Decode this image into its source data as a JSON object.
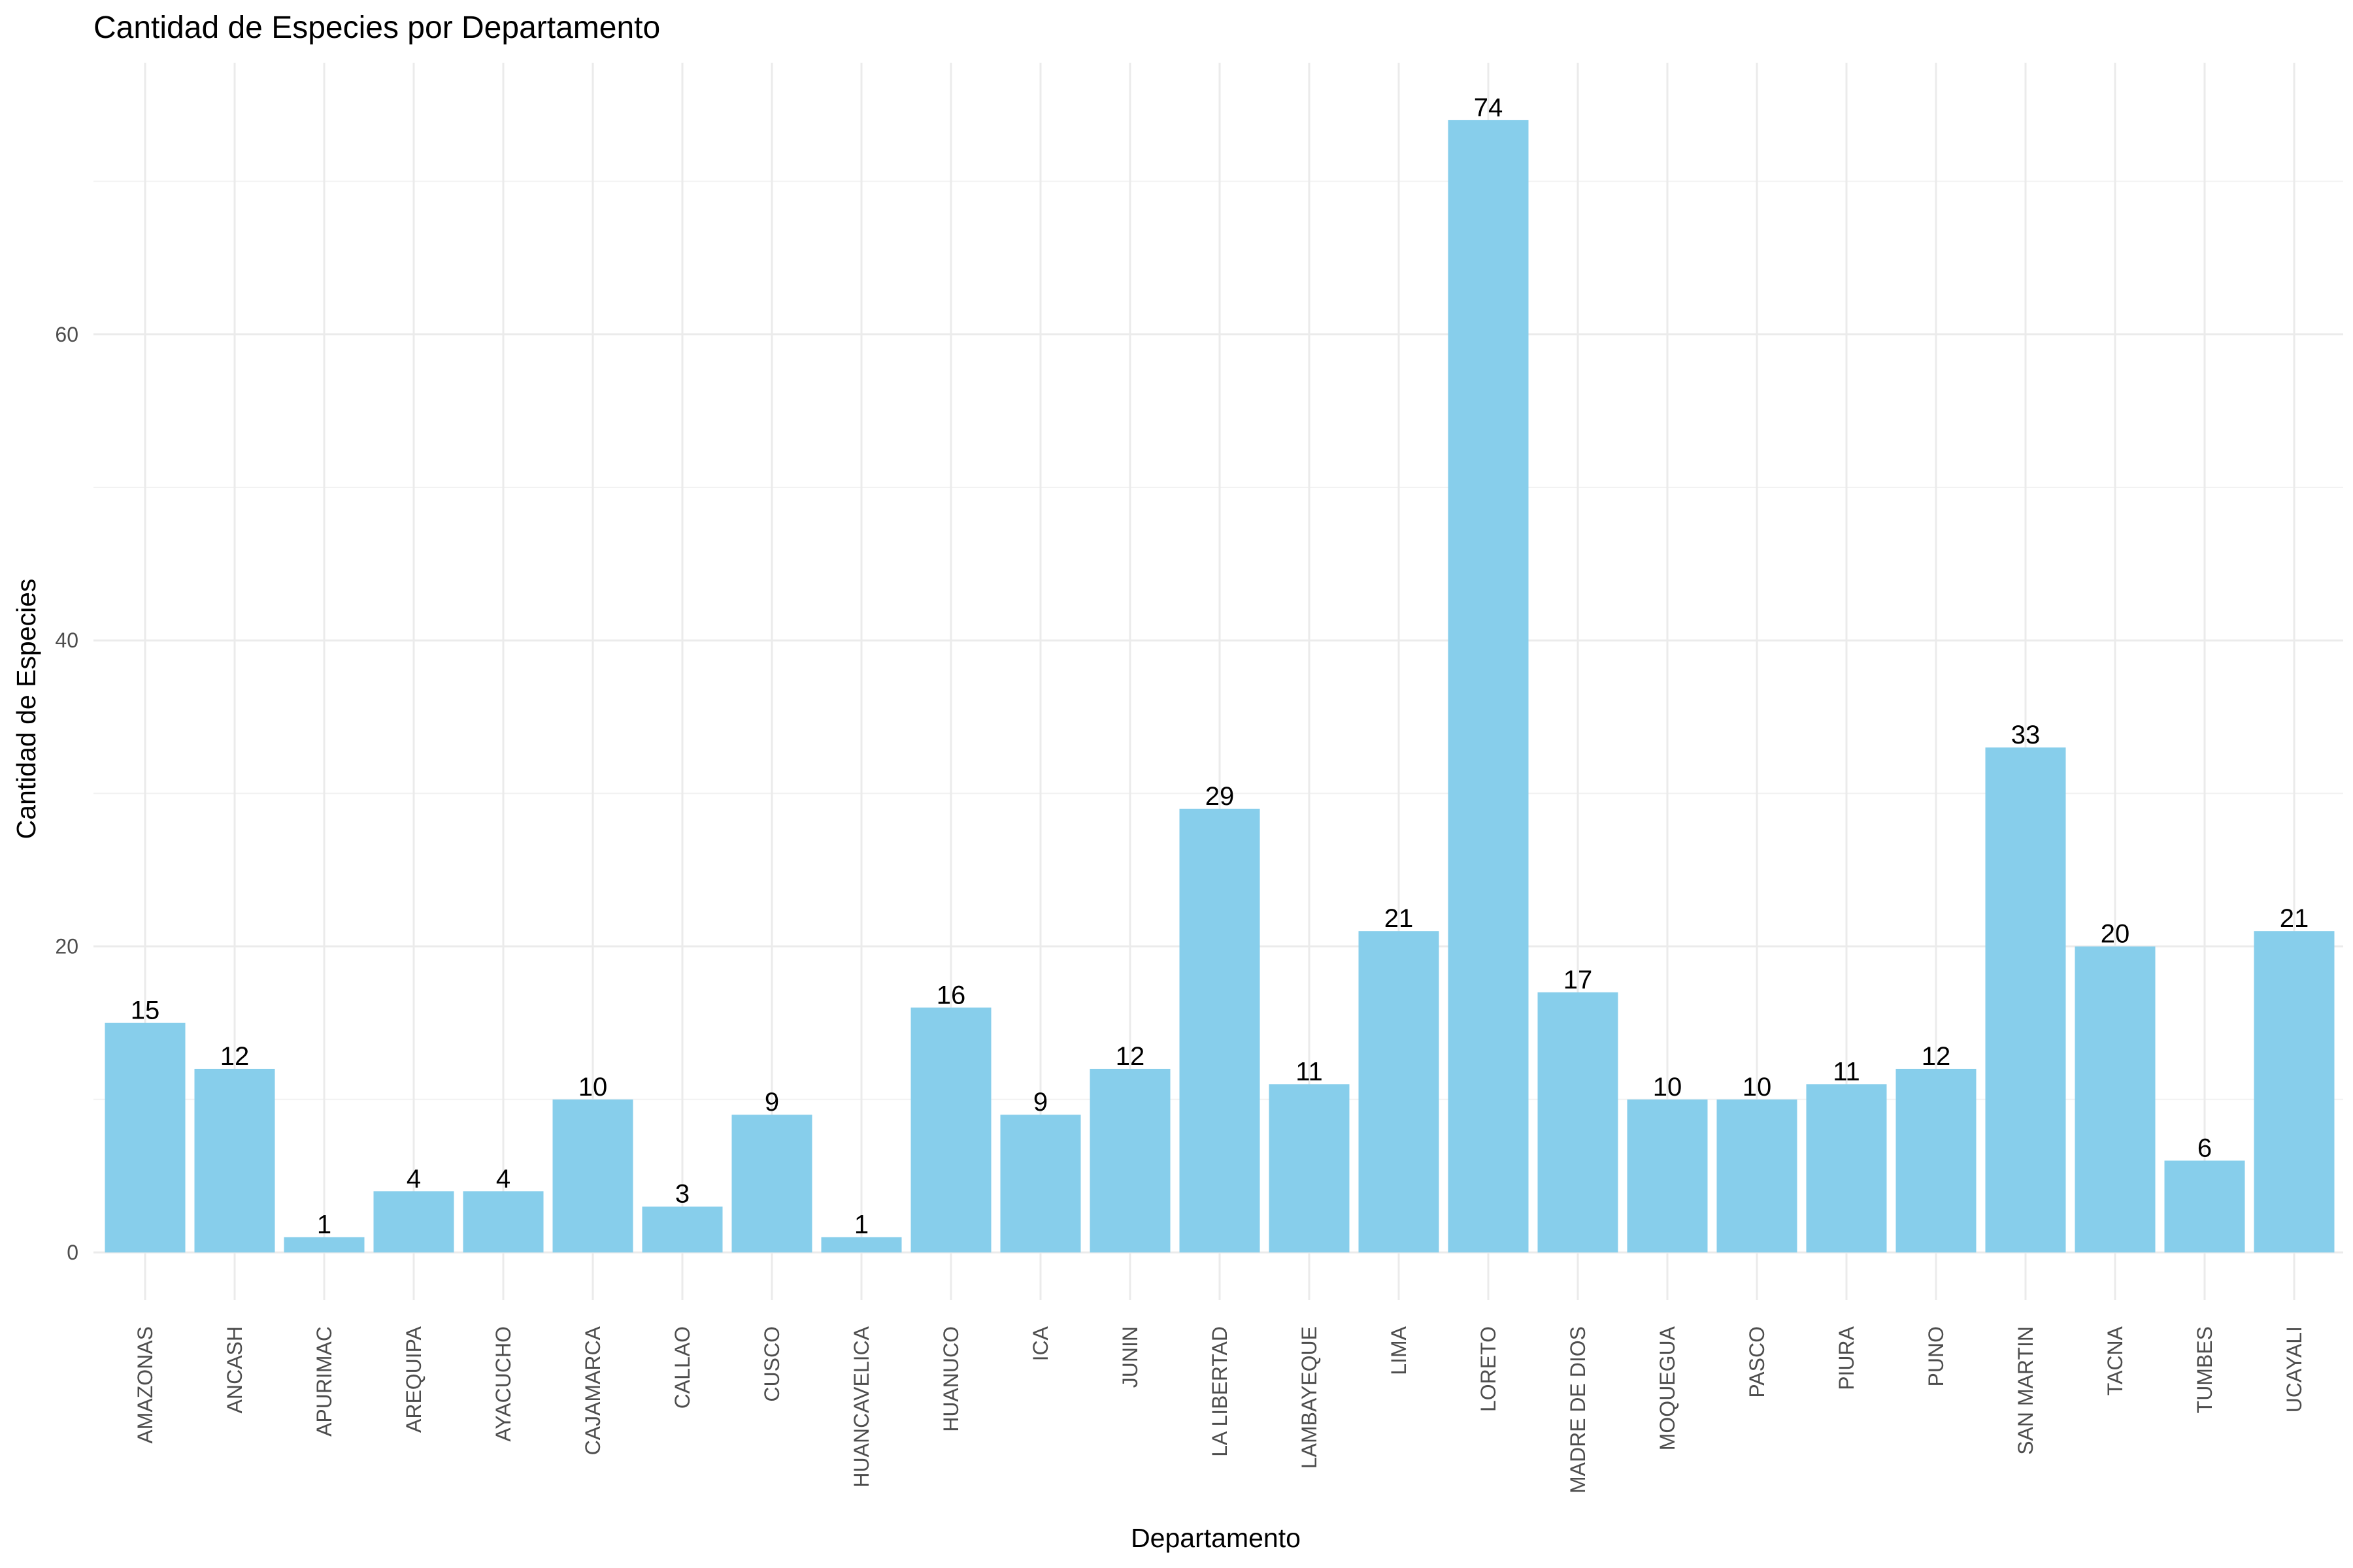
{
  "chart_data": {
    "type": "bar",
    "title": "Cantidad de Especies por Departamento",
    "xlabel": "Departamento",
    "ylabel": "Cantidad de Especies",
    "categories": [
      "AMAZONAS",
      "ANCASH",
      "APURIMAC",
      "AREQUIPA",
      "AYACUCHO",
      "CAJAMARCA",
      "CALLAO",
      "CUSCO",
      "HUANCAVELICA",
      "HUANUCO",
      "ICA",
      "JUNIN",
      "LA LIBERTAD",
      "LAMBAYEQUE",
      "LIMA",
      "LORETO",
      "MADRE DE DIOS",
      "MOQUEGUA",
      "PASCO",
      "PIURA",
      "PUNO",
      "SAN MARTIN",
      "TACNA",
      "TUMBES",
      "UCAYALI"
    ],
    "values": [
      15,
      12,
      1,
      4,
      4,
      10,
      3,
      9,
      1,
      16,
      9,
      12,
      29,
      11,
      21,
      74,
      17,
      10,
      10,
      11,
      12,
      33,
      20,
      6,
      21
    ],
    "yticks": [
      0,
      20,
      40,
      60
    ],
    "ylim": [
      -3.7,
      77.7
    ],
    "grid": true,
    "legend": "none",
    "bar_color": "#87CEEB"
  }
}
